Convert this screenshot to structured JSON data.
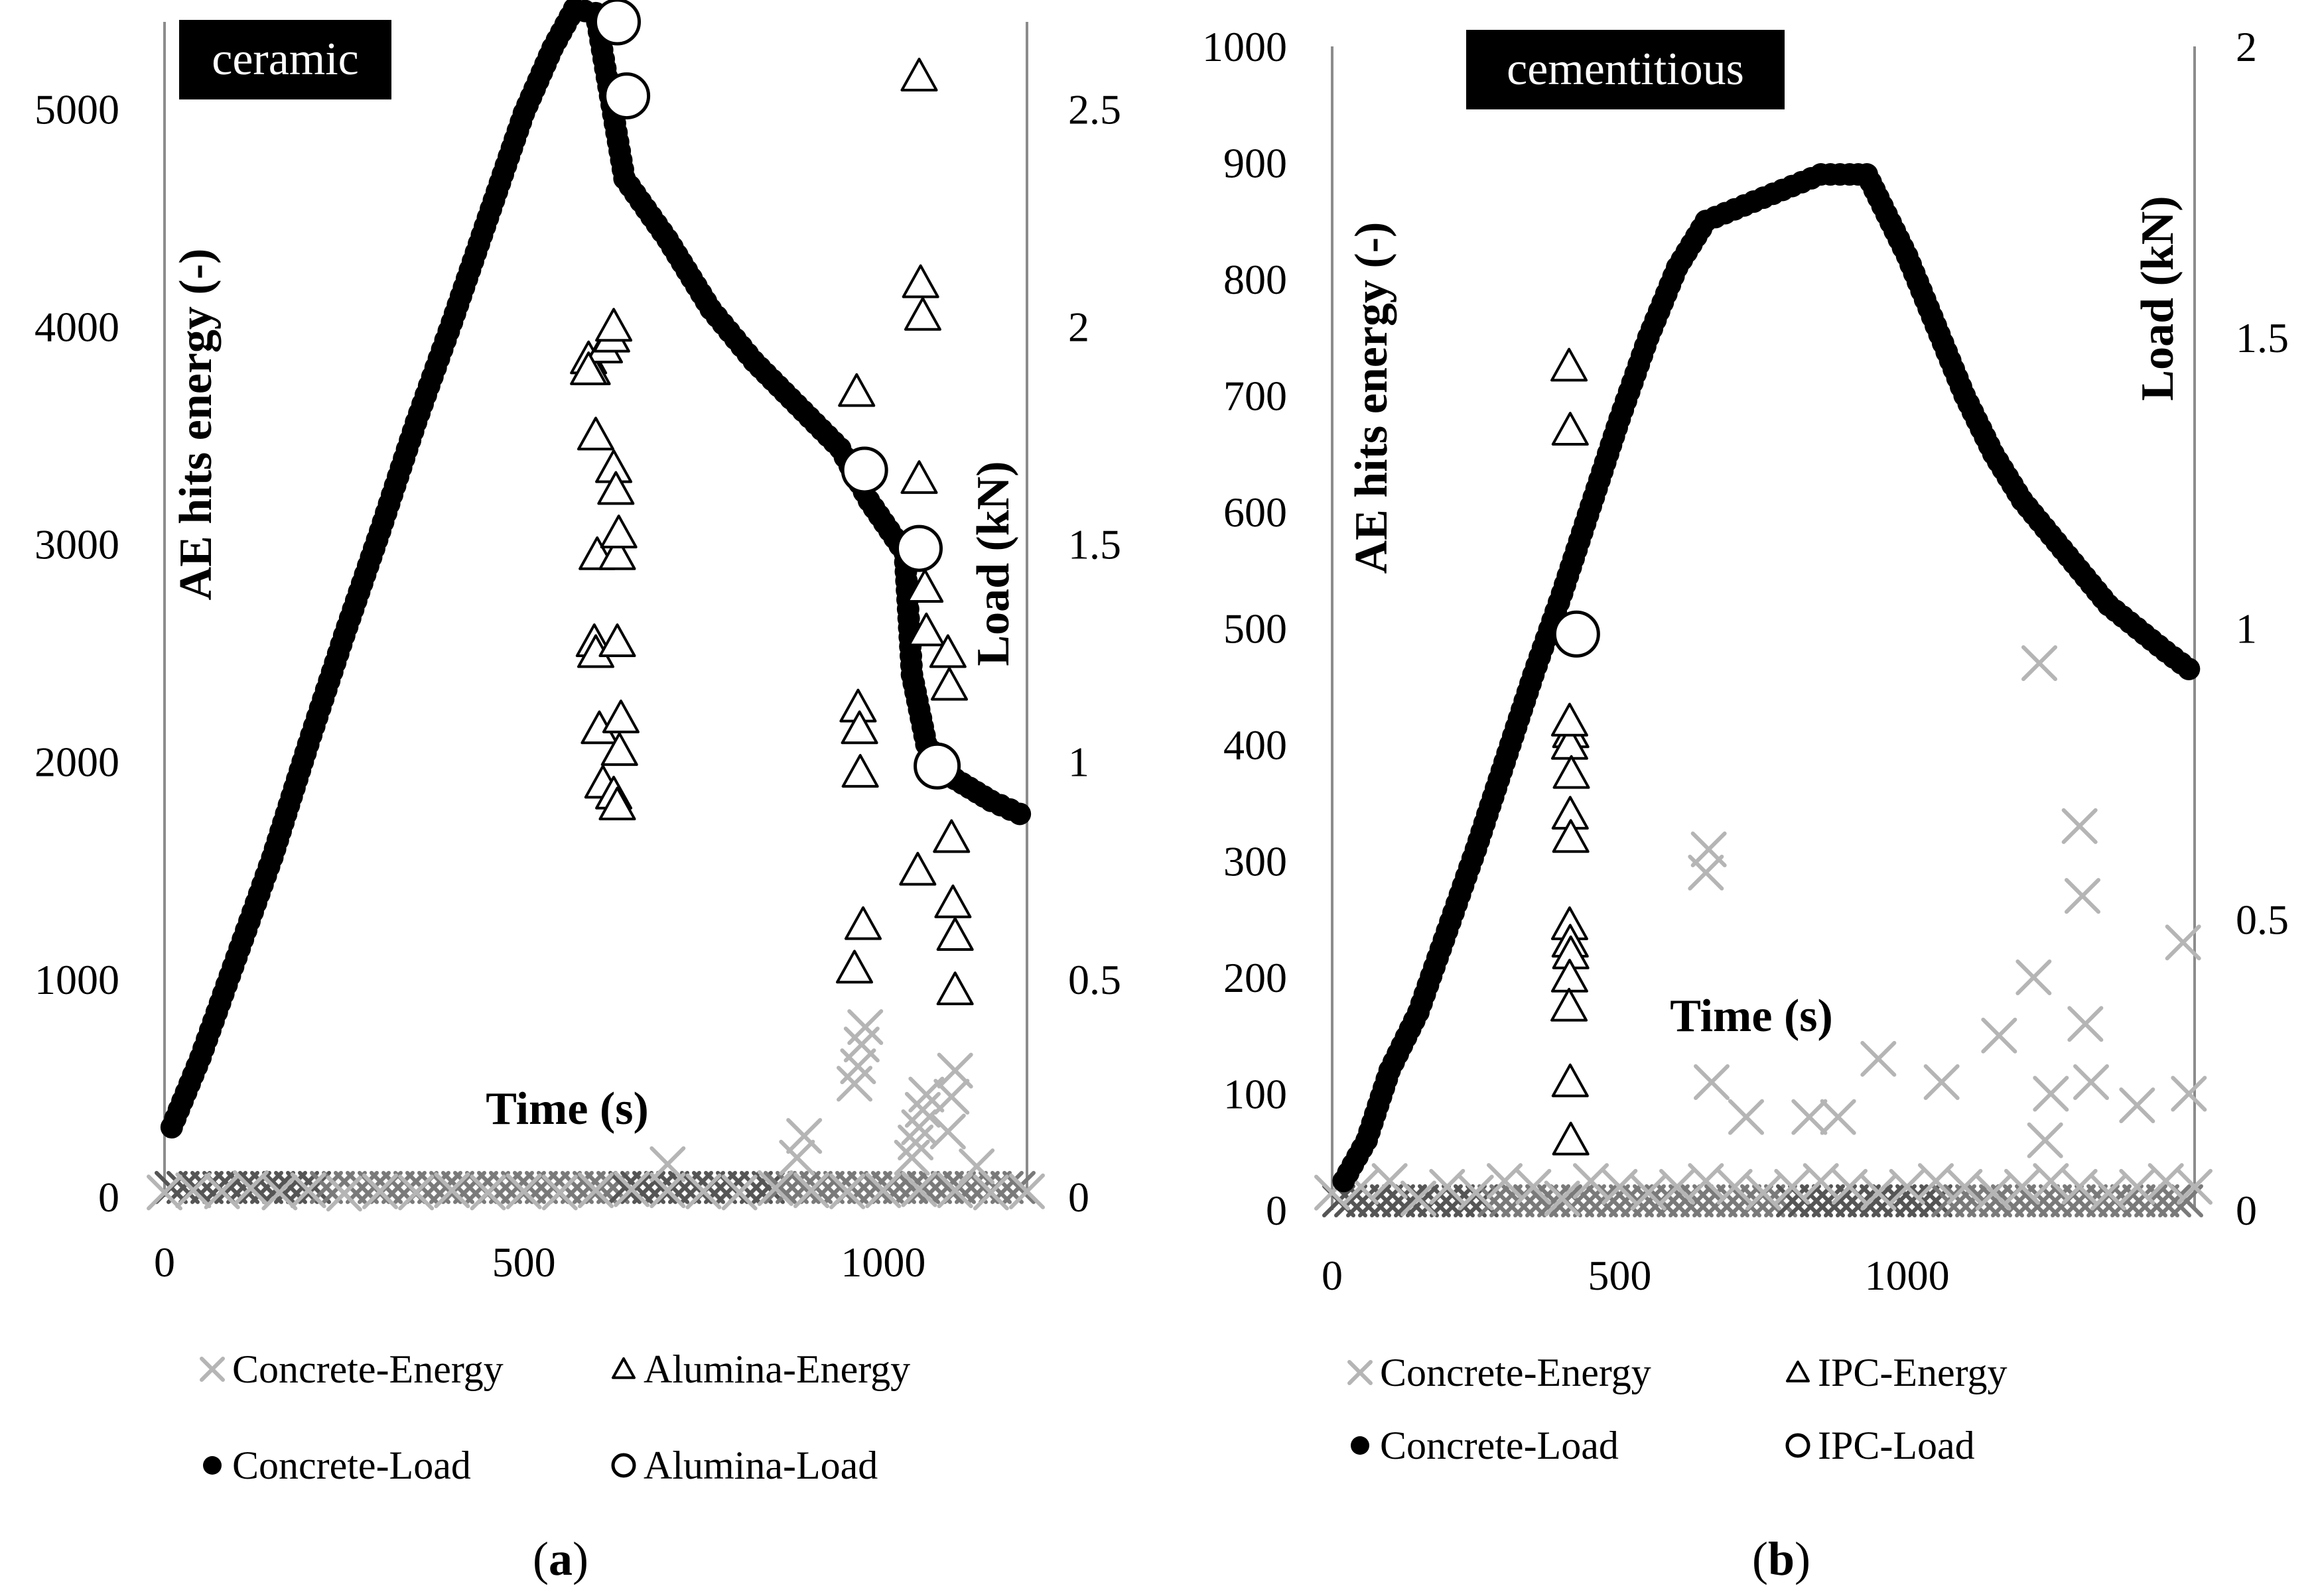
{
  "figure_labels": [
    "a",
    "b"
  ],
  "chart_data": [
    {
      "type": "scatter",
      "panel": "a",
      "title": "ceramic",
      "xlabel": "Time (s)",
      "ylabel": "AE hits energy (-)",
      "y2label": "Load (kN)",
      "xlim": [
        0,
        1200
      ],
      "ylim": [
        0,
        5400
      ],
      "y2lim": [
        0,
        2.7
      ],
      "x_ticks": [
        "0",
        "500",
        "1000"
      ],
      "x_tick_values": [
        0,
        500,
        1000
      ],
      "y_ticks": [
        "0",
        "1000",
        "2000",
        "3000",
        "4000",
        "5000"
      ],
      "y_tick_values": [
        0,
        1000,
        2000,
        3000,
        4000,
        5000
      ],
      "y2_ticks": [
        "0",
        "0.5",
        "1",
        "1.5",
        "2",
        "2.5"
      ],
      "y2_tick_values": [
        0,
        0.5,
        1,
        1.5,
        2,
        2.5
      ],
      "legend": [
        "Concrete-Energy",
        "Alumina-Energy",
        "Concrete-Load",
        "Alumina-Load"
      ],
      "series": [
        {
          "name": "Concrete-Energy",
          "axis": "left",
          "marker": "x",
          "x": [
            0,
            40,
            80,
            120,
            160,
            200,
            250,
            300,
            350,
            400,
            450,
            500,
            550,
            600,
            650,
            700,
            750,
            800,
            850,
            900,
            950,
            1000,
            1050,
            1100,
            1150,
            1200,
            880,
            890,
            960,
            965,
            970,
            975,
            1040,
            1045,
            1050,
            1055,
            1060,
            1090,
            1095,
            1100,
            700,
            1130
          ],
          "y": [
            20,
            30,
            25,
            40,
            20,
            30,
            15,
            25,
            20,
            30,
            20,
            25,
            20,
            30,
            35,
            30,
            25,
            20,
            40,
            30,
            25,
            30,
            35,
            30,
            20,
            25,
            180,
            280,
            520,
            600,
            700,
            780,
            180,
            250,
            320,
            400,
            470,
            300,
            460,
            580,
            150,
            140
          ]
        },
        {
          "name": "Alumina-Energy",
          "axis": "left",
          "marker": "triangle",
          "x": [
            590,
            595,
            600,
            598,
            600,
            602,
            605,
            610,
            612,
            590,
            622,
            625,
            625,
            628,
            630,
            630,
            632,
            635,
            633,
            625,
            630,
            960,
            963,
            965,
            967,
            968,
            972,
            1050,
            1052,
            1055,
            1050,
            1058,
            1060,
            1048,
            1090,
            1092,
            1095,
            1097,
            1100,
            1100
          ],
          "y": [
            3850,
            3800,
            3500,
            2550,
            2500,
            2950,
            2150,
            1900,
            3900,
            3800,
            3950,
            4000,
            3350,
            3250,
            2550,
            2950,
            3050,
            2200,
            2050,
            1850,
            1800,
            1050,
            3700,
            2250,
            2150,
            1950,
            1250,
            5150,
            4200,
            4050,
            3300,
            2800,
            2600,
            1500,
            2500,
            2350,
            1650,
            1350,
            1200,
            950
          ]
        },
        {
          "name": "Concrete-Load",
          "axis": "right",
          "marker": "filled-circle",
          "x": [
            10,
            50,
            100,
            150,
            200,
            250,
            300,
            350,
            400,
            450,
            500,
            540,
            570,
            600,
            640,
            700,
            760,
            820,
            880,
            940,
            980,
            1030,
            1040,
            1060,
            1100,
            1150,
            1190
          ],
          "y": [
            0.16,
            0.32,
            0.55,
            0.78,
            1.04,
            1.29,
            1.53,
            1.78,
            2.01,
            2.25,
            2.49,
            2.64,
            2.73,
            2.72,
            2.34,
            2.2,
            2.04,
            1.92,
            1.82,
            1.72,
            1.6,
            1.48,
            1.2,
            1.04,
            0.96,
            0.91,
            0.88
          ]
        },
        {
          "name": "Alumina-Load",
          "axis": "right",
          "marker": "open-circle",
          "x": [
            630,
            643,
            974,
            1050,
            1075
          ],
          "y": [
            2.7,
            2.53,
            1.67,
            1.49,
            0.99
          ]
        }
      ]
    },
    {
      "type": "scatter",
      "panel": "b",
      "title": "cementitious",
      "xlabel": "Time (s)",
      "ylabel": "AE hits energy (-)",
      "y2label": "Load (kN)",
      "xlim": [
        0,
        1500
      ],
      "ylim": [
        0,
        1000
      ],
      "y2lim": [
        0,
        2
      ],
      "x_ticks": [
        "0",
        "500",
        "1000"
      ],
      "x_tick_values": [
        0,
        500,
        1000
      ],
      "y_ticks": [
        "0",
        "100",
        "200",
        "300",
        "400",
        "500",
        "600",
        "700",
        "800",
        "900",
        "1000"
      ],
      "y_tick_values": [
        0,
        100,
        200,
        300,
        400,
        500,
        600,
        700,
        800,
        900,
        1000
      ],
      "y2_ticks": [
        "0",
        "0.5",
        "1",
        "1.5",
        "2"
      ],
      "y2_tick_values": [
        0,
        0.5,
        1,
        1.5,
        2
      ],
      "legend": [
        "Concrete-Energy",
        "IPC-Energy",
        "Concrete-Load",
        "IPC-Load"
      ],
      "series": [
        {
          "name": "Concrete-Energy",
          "axis": "left",
          "marker": "x",
          "x": [
            0,
            50,
            100,
            150,
            200,
            250,
            300,
            350,
            400,
            450,
            500,
            550,
            600,
            650,
            700,
            750,
            800,
            850,
            900,
            950,
            1000,
            1050,
            1100,
            1150,
            1200,
            1250,
            1300,
            1350,
            1400,
            1450,
            1500,
            650,
            655,
            830,
            880,
            950,
            1060,
            1160,
            1220,
            1230,
            1240,
            1250,
            1300,
            1305,
            1310,
            1320,
            1400,
            1480,
            1490,
            660,
            720
          ],
          "y": [
            15,
            20,
            25,
            10,
            20,
            15,
            25,
            20,
            10,
            25,
            20,
            15,
            20,
            25,
            20,
            15,
            20,
            25,
            20,
            15,
            20,
            25,
            20,
            15,
            20,
            25,
            20,
            15,
            20,
            25,
            20,
            290,
            310,
            80,
            80,
            130,
            110,
            150,
            200,
            470,
            60,
            100,
            330,
            270,
            160,
            110,
            90,
            230,
            100,
            110,
            80
          ]
        },
        {
          "name": "IPC-Energy",
          "axis": "left",
          "marker": "triangle",
          "x": [
            412,
            414,
            415,
            413,
            416,
            414,
            415,
            413,
            414,
            415,
            413,
            412,
            414,
            415,
            413
          ],
          "y": [
            725,
            670,
            410,
            400,
            375,
            340,
            320,
            245,
            230,
            220,
            200,
            175,
            110,
            60,
            420
          ]
        },
        {
          "name": "Concrete-Load",
          "axis": "right",
          "marker": "filled-circle",
          "x": [
            20,
            60,
            100,
            150,
            200,
            250,
            300,
            350,
            400,
            450,
            500,
            550,
            600,
            650,
            700,
            750,
            800,
            850,
            900,
            930,
            950,
            1000,
            1050,
            1100,
            1150,
            1200,
            1250,
            1300,
            1350,
            1400,
            1450,
            1490
          ],
          "y": [
            0.05,
            0.12,
            0.24,
            0.34,
            0.48,
            0.62,
            0.77,
            0.92,
            1.06,
            1.21,
            1.36,
            1.5,
            1.62,
            1.7,
            1.72,
            1.74,
            1.76,
            1.78,
            1.78,
            1.78,
            1.74,
            1.64,
            1.52,
            1.4,
            1.3,
            1.22,
            1.16,
            1.1,
            1.04,
            1.0,
            0.96,
            0.93
          ]
        },
        {
          "name": "IPC-Load",
          "axis": "right",
          "marker": "open-circle",
          "x": [
            425
          ],
          "y": [
            0.99
          ]
        }
      ]
    }
  ]
}
